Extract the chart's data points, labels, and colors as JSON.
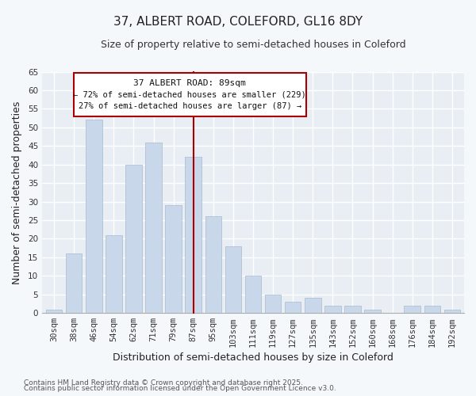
{
  "title": "37, ALBERT ROAD, COLEFORD, GL16 8DY",
  "subtitle": "Size of property relative to semi-detached houses in Coleford",
  "xlabel": "Distribution of semi-detached houses by size in Coleford",
  "ylabel": "Number of semi-detached properties",
  "bar_labels": [
    "30sqm",
    "38sqm",
    "46sqm",
    "54sqm",
    "62sqm",
    "71sqm",
    "79sqm",
    "87sqm",
    "95sqm",
    "103sqm",
    "111sqm",
    "119sqm",
    "127sqm",
    "135sqm",
    "143sqm",
    "152sqm",
    "160sqm",
    "168sqm",
    "176sqm",
    "184sqm",
    "192sqm"
  ],
  "bar_values": [
    1,
    16,
    52,
    21,
    40,
    46,
    29,
    42,
    26,
    18,
    10,
    5,
    3,
    4,
    2,
    2,
    1,
    0,
    2,
    2,
    1
  ],
  "bar_color": "#c8d8ea",
  "highlight_bar_index": 7,
  "highlight_line_color": "#aa0000",
  "ylim": [
    0,
    65
  ],
  "yticks": [
    0,
    5,
    10,
    15,
    20,
    25,
    30,
    35,
    40,
    45,
    50,
    55,
    60,
    65
  ],
  "annotation_title": "37 ALBERT ROAD: 89sqm",
  "annotation_line1": "← 72% of semi-detached houses are smaller (229)",
  "annotation_line2": "27% of semi-detached houses are larger (87) →",
  "footer_line1": "Contains HM Land Registry data © Crown copyright and database right 2025.",
  "footer_line2": "Contains public sector information licensed under the Open Government Licence v3.0.",
  "background_color": "#f5f8fa",
  "plot_bg_color": "#e8eef4",
  "grid_color": "#ffffff",
  "title_fontsize": 11,
  "subtitle_fontsize": 9,
  "axis_label_fontsize": 9,
  "tick_fontsize": 7.5,
  "footer_fontsize": 6.5
}
